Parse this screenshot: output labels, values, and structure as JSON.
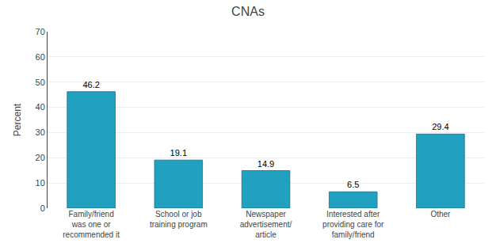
{
  "chart_data": {
    "type": "bar",
    "title": "CNAs",
    "categories": [
      "Family/friend\nwas one or\nrecommended it",
      "School or job\ntraining program",
      "Newspaper\nadvertisement/\narticle",
      "Interested after\nproviding care for\nfamily/friend",
      "Other"
    ],
    "values": [
      46.2,
      19.1,
      14.9,
      6.5,
      29.4
    ],
    "color": "#22a0c0",
    "y_label": "Percent",
    "ylim": [
      0,
      70
    ],
    "yticks": [
      0,
      10,
      20,
      30,
      40,
      50,
      60,
      70
    ],
    "grid": true,
    "data_labels": true
  }
}
